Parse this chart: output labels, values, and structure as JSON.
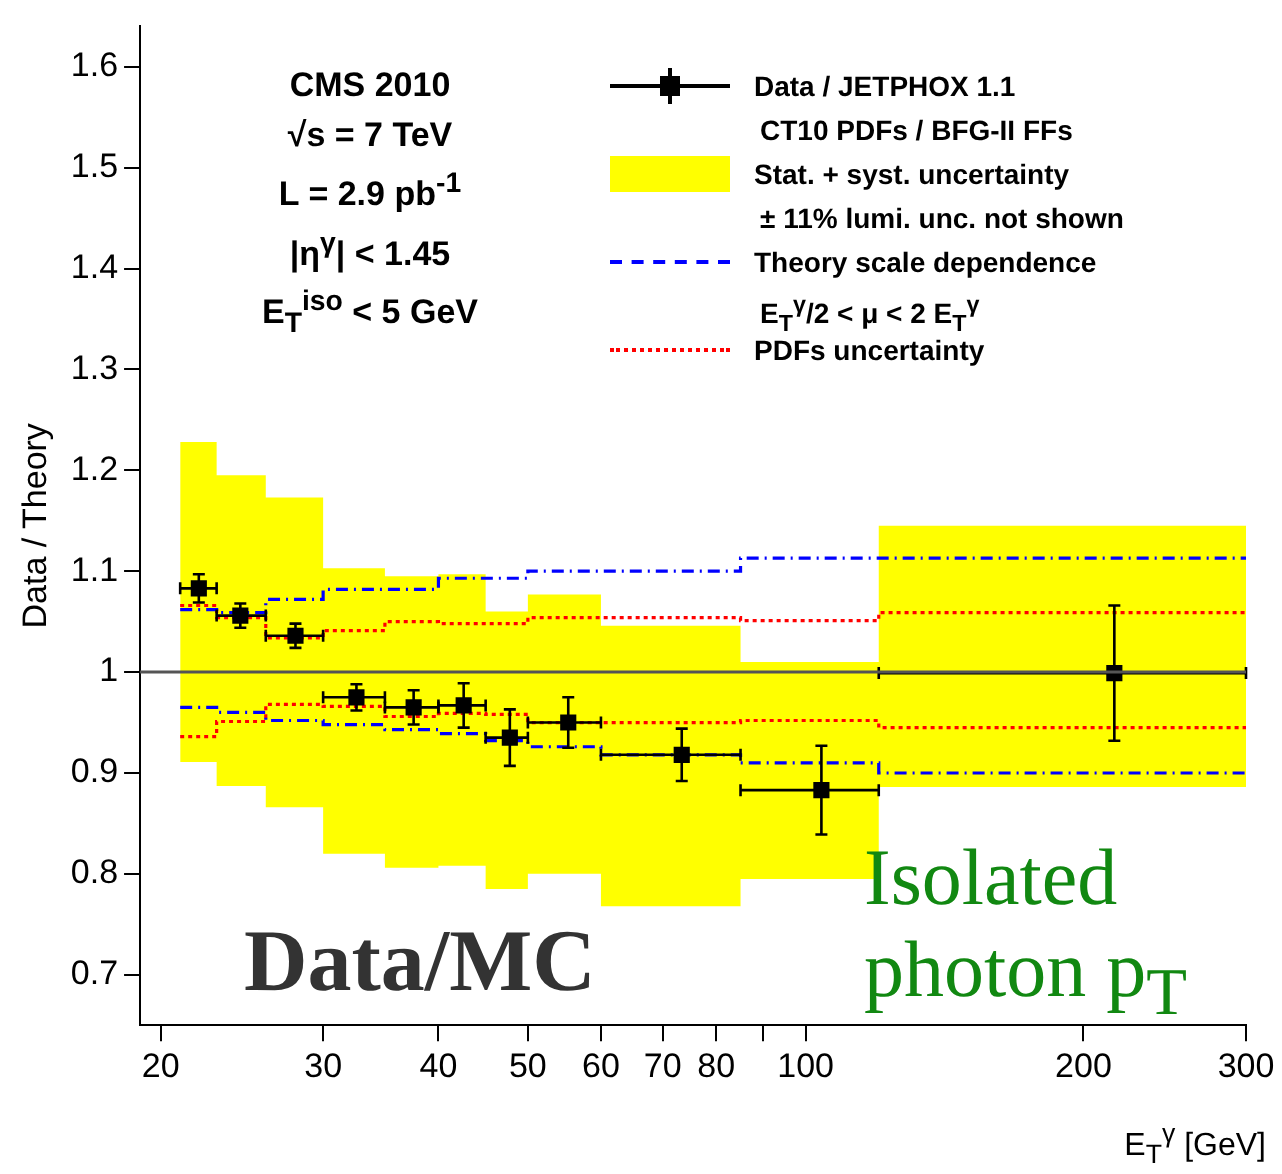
{
  "chart_data": {
    "type": "scatter",
    "ylabel": "Data / Theory",
    "xlabel": "E$_{T}$$^{γ}$ [GeV]",
    "log": "x",
    "xlim": [
      19,
      300
    ],
    "ylim": [
      0.65,
      1.64
    ],
    "xticks": [
      20,
      30,
      40,
      50,
      60,
      70,
      80,
      {
        "value": 90,
        "label": null
      },
      100,
      200,
      300
    ],
    "yticks": [
      0.7,
      0.8,
      0.9,
      1,
      1.1,
      1.2,
      1.3,
      1.4,
      1.5,
      1.6
    ],
    "grid": false,
    "legend": "top right",
    "ref_lines": [
      {
        "axis": "y",
        "value": 1,
        "label": null,
        "color": "#555555"
      }
    ],
    "annotations": [
      "CMS  2010",
      "√s = 7 TeV",
      "L = 2.9 pb$^{-1}$",
      "|η$^{γ}$| < 1.45",
      "E$_{T}$$^{iso}$ < 5 GeV",
      "CT10 PDFs / BFG-II FFs",
      "± 11% lumi. unc. not shown",
      "E$_{T}$$^{γ}$/2 < μ < 2 E$_{T}$$^{γ}$",
      "Data/MC",
      "Isolated photon p$_{T}$"
    ],
    "series": [
      {
        "name": "Data / JETPHOX 1.1",
        "marker": "square",
        "color": "#000000",
        "x": [
          22,
          24.4,
          28,
          32.6,
          37.6,
          42.6,
          47.8,
          55.3,
          73.4,
          104,
          216
        ],
        "values": [
          1.083,
          1.056,
          1.036,
          0.975,
          0.965,
          0.967,
          0.935,
          0.95,
          0.918,
          0.883,
          0.999
        ],
        "errors": [
          0.014,
          0.012,
          0.012,
          0.013,
          0.017,
          0.022,
          0.028,
          0.025,
          0.026,
          0.044,
          0.067
        ],
        "xerrors": [
          [
            21,
            23
          ],
          [
            23,
            26
          ],
          [
            26,
            30
          ],
          [
            30,
            35
          ],
          [
            35,
            40
          ],
          [
            40,
            45
          ],
          [
            45,
            50
          ],
          [
            50,
            60
          ],
          [
            60,
            85
          ],
          [
            85,
            120
          ],
          [
            120,
            300
          ]
        ]
      },
      {
        "name": "Stat. + syst. uncertainty",
        "type": "area",
        "color": "#ffff00",
        "x": [
          21,
          23,
          23,
          26,
          26,
          30,
          30,
          35,
          35,
          40,
          40,
          45,
          45,
          50,
          50,
          60,
          60,
          85,
          85,
          120,
          120,
          300
        ],
        "lower": [
          0.911,
          0.911,
          0.887,
          0.887,
          0.866,
          0.866,
          0.82,
          0.82,
          0.806,
          0.806,
          0.808,
          0.808,
          0.785,
          0.785,
          0.8,
          0.8,
          0.768,
          0.768,
          0.795,
          0.795,
          0.886,
          0.886
        ],
        "upper": [
          1.228,
          1.228,
          1.195,
          1.195,
          1.173,
          1.173,
          1.103,
          1.103,
          1.095,
          1.095,
          1.097,
          1.097,
          1.06,
          1.06,
          1.077,
          1.077,
          1.046,
          1.046,
          1.01,
          1.01,
          1.145,
          1.145
        ],
        "values": [
          null,
          null,
          null,
          null,
          null,
          null,
          null,
          null,
          null,
          null,
          null,
          null,
          null,
          null,
          null,
          null,
          null,
          null,
          null,
          null,
          null,
          null
        ]
      },
      {
        "name": "Theory scale dependence",
        "type": "step",
        "color": "#0000ff",
        "line_style": "dashed",
        "x": [
          21,
          23,
          26,
          30,
          35,
          40,
          45,
          50,
          60,
          85,
          120,
          300
        ],
        "values": [
          1.062,
          1.059,
          1.072,
          1.082,
          1.082,
          1.093,
          1.093,
          1.1,
          1.1,
          1.113,
          1.113,
          1.113
        ]
      },
      {
        "type": "step",
        "color": "#0000ff",
        "line_style": "dashed",
        "x": [
          21,
          23,
          26,
          30,
          35,
          40,
          45,
          50,
          60,
          85,
          120,
          300
        ],
        "values": [
          0.965,
          0.96,
          0.952,
          0.948,
          0.943,
          0.939,
          0.932,
          0.926,
          0.918,
          0.91,
          0.9,
          0.9
        ]
      },
      {
        "name": "PDFs uncertainty",
        "type": "step",
        "color": "#ff0000",
        "line_style": "dotted",
        "x": [
          21,
          23,
          26,
          30,
          35,
          40,
          45,
          50,
          60,
          85,
          120,
          300
        ],
        "values": [
          1.066,
          1.054,
          1.034,
          1.041,
          1.05,
          1.048,
          1.048,
          1.054,
          1.054,
          1.051,
          1.059,
          1.059
        ]
      },
      {
        "type": "step",
        "color": "#ff0000",
        "line_style": "dotted",
        "x": [
          21,
          23,
          26,
          30,
          35,
          40,
          45,
          50,
          60,
          85,
          120,
          300
        ],
        "values": [
          0.936,
          0.951,
          0.968,
          0.966,
          0.956,
          0.959,
          0.958,
          0.95,
          0.95,
          0.952,
          0.945,
          0.945
        ]
      }
    ]
  }
}
